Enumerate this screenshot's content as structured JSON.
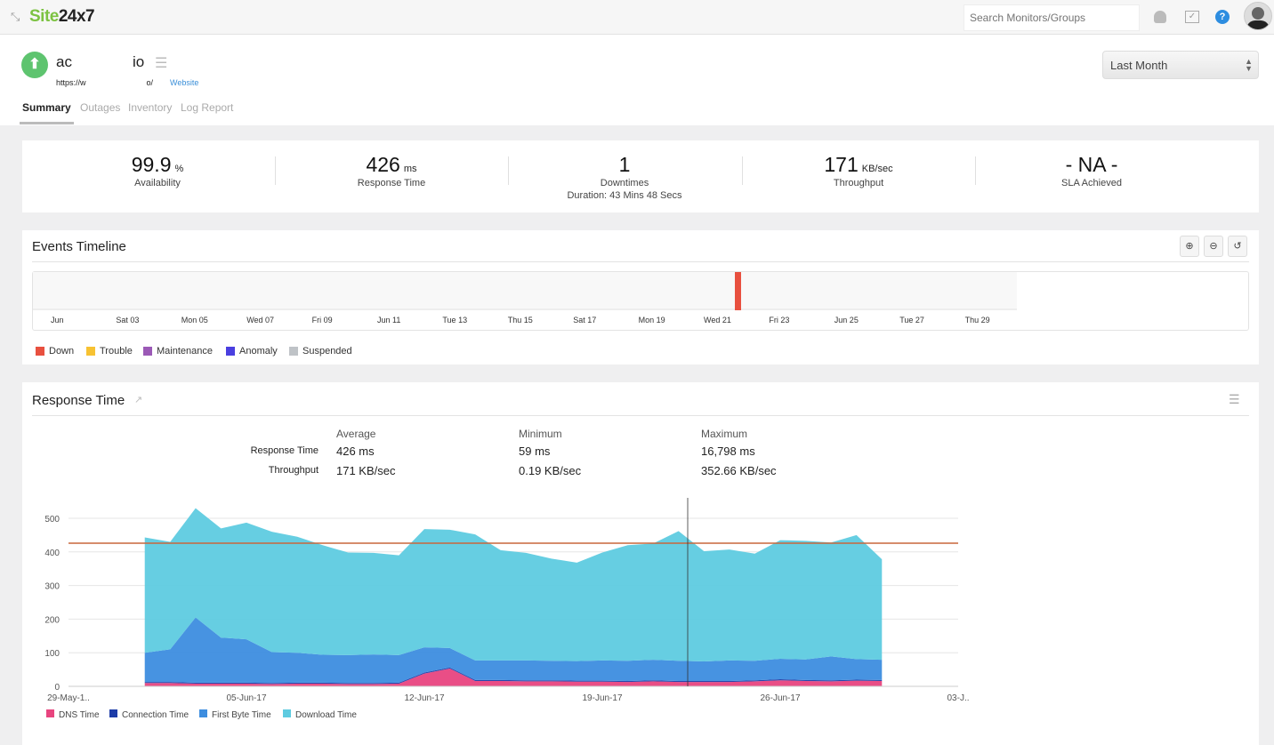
{
  "app": {
    "logo_green": "Site",
    "logo_dark": "24x7",
    "search_placeholder": "Search Monitors/Groups"
  },
  "monitor": {
    "name_part1": "ac",
    "name_part2": "io",
    "url_part1": "https://w",
    "url_part2": "o/",
    "type": "Website",
    "status": "up",
    "status_color": "#5ec46f"
  },
  "tabs": [
    {
      "label": "Summary",
      "active": true
    },
    {
      "label": "Outages"
    },
    {
      "label": "Inventory"
    },
    {
      "label": "Log Report"
    }
  ],
  "period": {
    "selected": "Last Month"
  },
  "stats": [
    {
      "value": "99.9",
      "unit": "%",
      "label": "Availability"
    },
    {
      "value": "426",
      "unit": "ms",
      "label": "Response Time"
    },
    {
      "value": "1",
      "unit": "",
      "label": "Downtimes",
      "sub": "Duration: 43 Mins 48 Secs"
    },
    {
      "value": "171",
      "unit": "KB/sec",
      "label": "Throughput"
    },
    {
      "value": "- NA -",
      "unit": "",
      "label": "SLA Achieved"
    }
  ],
  "events": {
    "title": "Events Timeline",
    "ticks": [
      "Jun",
      "Sat 03",
      "Mon 05",
      "Wed 07",
      "Fri 09",
      "Jun 11",
      "Tue 13",
      "Thu 15",
      "Sat 17",
      "Mon 19",
      "Wed 21",
      "Fri 23",
      "Jun 25",
      "Tue 27",
      "Thu 29"
    ],
    "legend": [
      {
        "label": "Down",
        "color": "#e8503f"
      },
      {
        "label": "Trouble",
        "color": "#f7c232"
      },
      {
        "label": "Maintenance",
        "color": "#9b59b6"
      },
      {
        "label": "Anomaly",
        "color": "#4a3fe0"
      },
      {
        "label": "Suspended",
        "color": "#bfc3c7"
      }
    ],
    "down_event_date": "22-Jun-17"
  },
  "response": {
    "title": "Response Time",
    "table": {
      "headers": [
        "Average",
        "Minimum",
        "Maximum"
      ],
      "rows": [
        {
          "label": "Response Time",
          "values": [
            "426 ms",
            "59 ms",
            "16,798 ms"
          ]
        },
        {
          "label": "Throughput",
          "values": [
            "171 KB/sec",
            "0.19 KB/sec",
            "352.66 KB/sec"
          ]
        }
      ]
    }
  },
  "chart_data": {
    "type": "area",
    "stacked": true,
    "x": [
      "01-Jun-17",
      "02-Jun-17",
      "03-Jun-17",
      "04-Jun-17",
      "05-Jun-17",
      "06-Jun-17",
      "07-Jun-17",
      "08-Jun-17",
      "09-Jun-17",
      "10-Jun-17",
      "11-Jun-17",
      "12-Jun-17",
      "13-Jun-17",
      "14-Jun-17",
      "15-Jun-17",
      "16-Jun-17",
      "17-Jun-17",
      "18-Jun-17",
      "19-Jun-17",
      "20-Jun-17",
      "21-Jun-17",
      "22-Jun-17",
      "23-Jun-17",
      "24-Jun-17",
      "25-Jun-17",
      "26-Jun-17",
      "27-Jun-17",
      "28-Jun-17",
      "29-Jun-17",
      "30-Jun-17"
    ],
    "xticks": [
      "29-May-1..",
      "05-Jun-17",
      "12-Jun-17",
      "19-Jun-17",
      "26-Jun-17",
      "03-J.."
    ],
    "yticks": [
      0,
      100,
      200,
      300,
      400,
      500
    ],
    "ylim": [
      0,
      550
    ],
    "grid": true,
    "average_line": 426,
    "legend_position": "bottom-left",
    "series": [
      {
        "name": "DNS Time",
        "color": "#e8457f",
        "values": [
          10,
          10,
          8,
          8,
          8,
          7,
          8,
          8,
          7,
          7,
          8,
          38,
          53,
          16,
          16,
          15,
          15,
          14,
          14,
          13,
          15,
          13,
          13,
          13,
          15,
          18,
          16,
          15,
          17,
          16
        ]
      },
      {
        "name": "Connection Time",
        "color": "#1d3ca8",
        "values": [
          3,
          3,
          3,
          3,
          3,
          3,
          3,
          3,
          3,
          3,
          3,
          3,
          3,
          3,
          3,
          3,
          3,
          3,
          3,
          3,
          3,
          3,
          3,
          3,
          3,
          3,
          3,
          3,
          3,
          3
        ]
      },
      {
        "name": "First Byte Time",
        "color": "#3d8ddf",
        "values": [
          87,
          97,
          194,
          134,
          129,
          92,
          89,
          83,
          83,
          85,
          82,
          75,
          58,
          58,
          58,
          59,
          58,
          58,
          60,
          60,
          61,
          60,
          58,
          61,
          58,
          61,
          61,
          71,
          61,
          60
        ]
      },
      {
        "name": "Download Time",
        "color": "#5ecbe0",
        "values": [
          343,
          320,
          325,
          325,
          347,
          358,
          345,
          326,
          305,
          302,
          297,
          352,
          352,
          375,
          328,
          320,
          304,
          293,
          321,
          344,
          346,
          386,
          328,
          330,
          319,
          353,
          353,
          339,
          369,
          299
        ]
      }
    ]
  }
}
